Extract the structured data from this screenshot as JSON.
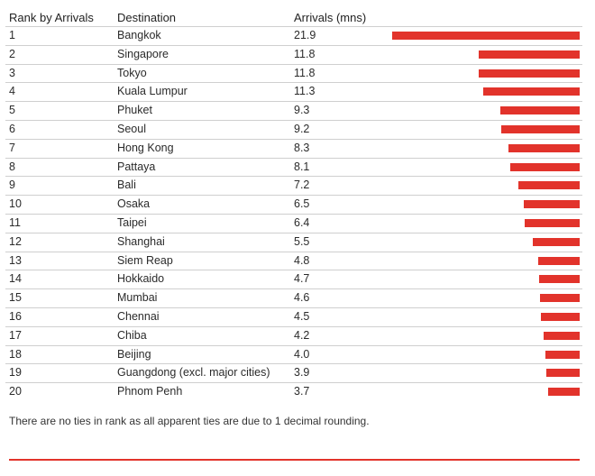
{
  "headers": {
    "rank": "Rank by Arrivals",
    "destination": "Destination",
    "arrivals": "Arrivals (mns)"
  },
  "accent_color": "#e2332b",
  "chart_data": {
    "type": "bar",
    "orientation": "horizontal",
    "categories": [
      "Bangkok",
      "Singapore",
      "Tokyo",
      "Kuala Lumpur",
      "Phuket",
      "Seoul",
      "Hong Kong",
      "Pattaya",
      "Bali",
      "Osaka",
      "Taipei",
      "Shanghai",
      "Siem Reap",
      "Hokkaido",
      "Mumbai",
      "Chennai",
      "Chiba",
      "Beijing",
      "Guangdong (excl. major cities)",
      "Phnom Penh"
    ],
    "ranks": [
      "1",
      "2",
      "3",
      "4",
      "5",
      "6",
      "7",
      "8",
      "9",
      "10",
      "11",
      "12",
      "13",
      "14",
      "15",
      "16",
      "17",
      "18",
      "19",
      "20"
    ],
    "values": [
      21.9,
      11.8,
      11.8,
      11.3,
      9.3,
      9.2,
      8.3,
      8.1,
      7.2,
      6.5,
      6.4,
      5.5,
      4.8,
      4.7,
      4.6,
      4.5,
      4.2,
      4.0,
      3.9,
      3.7
    ],
    "value_labels": [
      "21.9",
      "11.8",
      "11.8",
      "11.3",
      "9.3",
      "9.2",
      "8.3",
      "8.1",
      "7.2",
      "6.5",
      "6.4",
      "5.5",
      "4.8",
      "4.7",
      "4.6",
      "4.5",
      "4.2",
      "4.0",
      "3.9",
      "3.7"
    ],
    "bar_color": "#e2332b",
    "xlim": [
      0,
      21.9
    ]
  },
  "note": "There are no ties in rank as all apparent ties are due to 1 decimal rounding."
}
